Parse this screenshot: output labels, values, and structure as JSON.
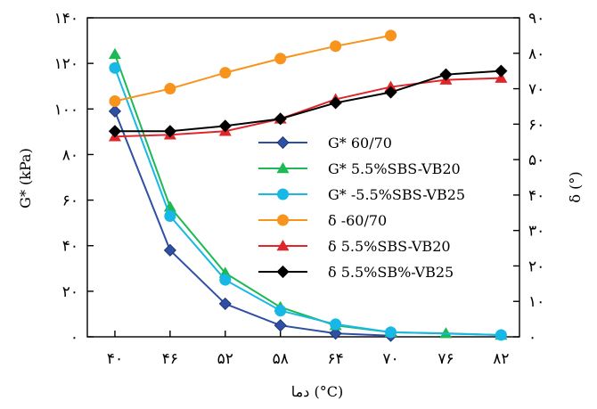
{
  "chart_data": {
    "type": "line",
    "x": [
      40,
      46,
      52,
      58,
      64,
      70,
      76,
      82
    ],
    "x_tick_labels": [
      "۴۰",
      "۴۶",
      "۵۲",
      "۵۸",
      "۶۴",
      "۷۰",
      "۷۶",
      "۸۲"
    ],
    "xlabel": "دما (°C)",
    "xlim": [
      37,
      84
    ],
    "ylabel_left": "G* (kPa)",
    "ylim_left": [
      0,
      140
    ],
    "y_left_ticks": [
      0,
      20,
      40,
      60,
      80,
      100,
      120,
      140
    ],
    "y_left_tick_labels": [
      "۰",
      "۲۰",
      "۴۰",
      "۶۰",
      "۸۰",
      "۱۰۰",
      "۱۲۰",
      "۱۴۰"
    ],
    "ylabel_right": "δ (°)",
    "ylim_right": [
      0,
      90
    ],
    "y_right_ticks": [
      0,
      10,
      20,
      30,
      40,
      50,
      60,
      70,
      80,
      90
    ],
    "y_right_tick_labels": [
      "۰",
      "۱۰",
      "۲۰",
      "۳۰",
      "۴۰",
      "۵۰",
      "۶۰",
      "۷۰",
      "۸۰",
      "۹۰"
    ],
    "grid": false,
    "legend_position": "center-right",
    "series": [
      {
        "name": "G* 60/70",
        "axis": "left",
        "marker": "diamond",
        "color": "#2E4FA3",
        "x": [
          40,
          46,
          52,
          58,
          64,
          70
        ],
        "y": [
          99,
          38,
          14.5,
          5,
          1.5,
          0.5
        ]
      },
      {
        "name": "G* 5.5%SBS-VB20",
        "axis": "left",
        "marker": "triangle",
        "color": "#1DB954",
        "x": [
          40,
          46,
          52,
          58,
          64,
          70,
          76,
          82
        ],
        "y": [
          124,
          57,
          28,
          13,
          5,
          2,
          1.5,
          0.8
        ]
      },
      {
        "name": "G* -5.5%SBS-VB25",
        "axis": "left",
        "marker": "circle",
        "color": "#17B8E6",
        "x": [
          40,
          46,
          52,
          58,
          64,
          70,
          82
        ],
        "y": [
          118,
          53,
          25,
          11.5,
          5.5,
          2,
          0.8
        ]
      },
      {
        "name": "δ -60/70",
        "axis": "right",
        "marker": "circle",
        "color": "#F7941D",
        "x": [
          40,
          46,
          52,
          58,
          64,
          70
        ],
        "y": [
          66.5,
          70,
          74.5,
          78.5,
          82,
          85
        ]
      },
      {
        "name": "δ 5.5%SBS-VB20",
        "axis": "right",
        "marker": "triangle",
        "color": "#E0262B",
        "x": [
          40,
          46,
          52,
          58,
          64,
          70,
          76,
          82
        ],
        "y": [
          56.5,
          57,
          58,
          61.5,
          67,
          70.5,
          72.5,
          73
        ]
      },
      {
        "name": "δ 5.5%SB%-VB25",
        "axis": "right",
        "marker": "diamond",
        "color": "#000000",
        "x": [
          40,
          46,
          52,
          58,
          64,
          70,
          76,
          82
        ],
        "y": [
          58,
          58,
          59.5,
          61.5,
          66,
          69,
          74,
          75
        ]
      }
    ]
  }
}
